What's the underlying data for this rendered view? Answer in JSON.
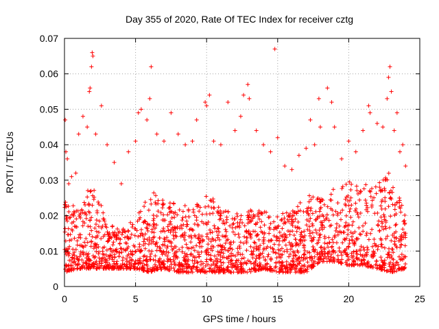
{
  "chart_data": {
    "type": "scatter",
    "title": "Day 355 of 2020, Rate Of TEC Index for receiver cztg",
    "xlabel": "GPS time / hours",
    "ylabel": "ROTI / TECUs",
    "xlim": [
      0,
      25
    ],
    "ylim": [
      0,
      0.07
    ],
    "xticks": [
      0,
      5,
      10,
      15,
      20,
      25
    ],
    "xtick_labels": [
      "0",
      "5",
      "10",
      "15",
      "20",
      "25"
    ],
    "yticks": [
      0,
      0.01,
      0.02,
      0.03,
      0.04,
      0.05,
      0.06,
      0.07
    ],
    "ytick_labels": [
      "0",
      "0.01",
      "0.02",
      "0.03",
      "0.04",
      "0.05",
      "0.06",
      "0.07"
    ],
    "grid": true,
    "marker": "+",
    "color": "#ff0000",
    "data_span_hours": [
      0,
      24
    ],
    "series": [
      {
        "name": "ROTI",
        "points": [
          [
            0.05,
            0.047
          ],
          [
            0.1,
            0.038
          ],
          [
            0.2,
            0.036
          ],
          [
            0.3,
            0.029
          ],
          [
            0.5,
            0.031
          ],
          [
            0.8,
            0.032
          ],
          [
            1.0,
            0.043
          ],
          [
            1.3,
            0.048
          ],
          [
            1.6,
            0.045
          ],
          [
            1.75,
            0.055
          ],
          [
            1.8,
            0.056
          ],
          [
            1.9,
            0.062
          ],
          [
            1.95,
            0.066
          ],
          [
            2.0,
            0.065
          ],
          [
            2.2,
            0.043
          ],
          [
            2.6,
            0.051
          ],
          [
            3.0,
            0.04
          ],
          [
            3.5,
            0.035
          ],
          [
            4.0,
            0.029
          ],
          [
            4.5,
            0.038
          ],
          [
            5.0,
            0.041
          ],
          [
            5.2,
            0.049
          ],
          [
            5.4,
            0.05
          ],
          [
            5.8,
            0.047
          ],
          [
            6.0,
            0.053
          ],
          [
            6.1,
            0.062
          ],
          [
            6.5,
            0.043
          ],
          [
            7.0,
            0.041
          ],
          [
            7.5,
            0.049
          ],
          [
            8.0,
            0.043
          ],
          [
            8.5,
            0.04
          ],
          [
            9.0,
            0.041
          ],
          [
            9.3,
            0.047
          ],
          [
            9.9,
            0.052
          ],
          [
            10.0,
            0.051
          ],
          [
            10.2,
            0.054
          ],
          [
            10.5,
            0.041
          ],
          [
            11.0,
            0.04
          ],
          [
            11.5,
            0.052
          ],
          [
            12.0,
            0.044
          ],
          [
            12.4,
            0.048
          ],
          [
            12.6,
            0.054
          ],
          [
            12.9,
            0.057
          ],
          [
            13.0,
            0.053
          ],
          [
            13.5,
            0.044
          ],
          [
            14.0,
            0.04
          ],
          [
            14.5,
            0.038
          ],
          [
            14.8,
            0.067
          ],
          [
            15.0,
            0.042
          ],
          [
            15.5,
            0.034
          ],
          [
            16.0,
            0.033
          ],
          [
            16.5,
            0.037
          ],
          [
            17.0,
            0.039
          ],
          [
            17.3,
            0.047
          ],
          [
            17.6,
            0.04
          ],
          [
            17.9,
            0.053
          ],
          [
            18.0,
            0.045
          ],
          [
            18.5,
            0.056
          ],
          [
            18.8,
            0.052
          ],
          [
            19.0,
            0.045
          ],
          [
            19.5,
            0.036
          ],
          [
            20.0,
            0.041
          ],
          [
            20.5,
            0.038
          ],
          [
            21.0,
            0.044
          ],
          [
            21.4,
            0.051
          ],
          [
            21.5,
            0.049
          ],
          [
            22.0,
            0.046
          ],
          [
            22.4,
            0.045
          ],
          [
            22.7,
            0.053
          ],
          [
            22.8,
            0.059
          ],
          [
            22.9,
            0.062
          ],
          [
            23.0,
            0.055
          ],
          [
            23.2,
            0.044
          ],
          [
            23.4,
            0.049
          ],
          [
            23.6,
            0.038
          ],
          [
            23.8,
            0.04
          ],
          [
            24.0,
            0.034
          ]
        ]
      }
    ],
    "envelope_hourly": {
      "hours": [
        0,
        1,
        2,
        3,
        4,
        5,
        6,
        7,
        8,
        9,
        10,
        11,
        12,
        13,
        14,
        15,
        16,
        17,
        18,
        19,
        20,
        21,
        22,
        23,
        24
      ],
      "typical_low": [
        0.004,
        0.005,
        0.005,
        0.005,
        0.005,
        0.005,
        0.004,
        0.005,
        0.004,
        0.004,
        0.004,
        0.004,
        0.004,
        0.004,
        0.005,
        0.004,
        0.004,
        0.004,
        0.007,
        0.007,
        0.006,
        0.006,
        0.005,
        0.004,
        0.005
      ],
      "typical_high": [
        0.025,
        0.022,
        0.03,
        0.018,
        0.016,
        0.02,
        0.028,
        0.025,
        0.023,
        0.024,
        0.027,
        0.022,
        0.021,
        0.022,
        0.022,
        0.02,
        0.022,
        0.027,
        0.025,
        0.028,
        0.03,
        0.029,
        0.031,
        0.033,
        0.02
      ]
    }
  }
}
